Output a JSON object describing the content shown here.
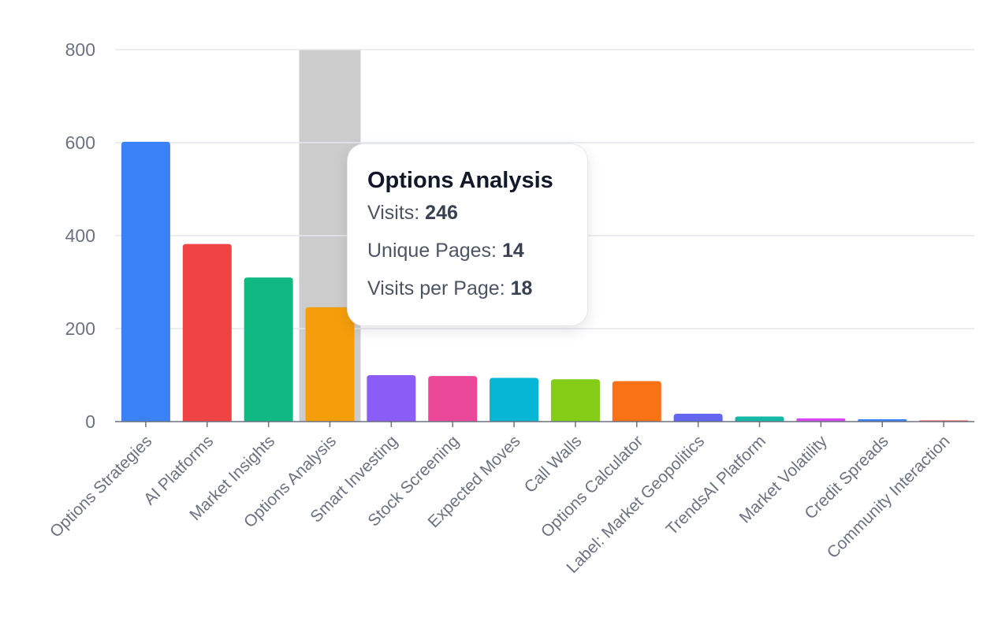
{
  "chart_data": {
    "type": "bar",
    "title": "",
    "xlabel": "",
    "ylabel": "",
    "ylim": [
      0,
      800
    ],
    "yticks": [
      0,
      200,
      400,
      600,
      800
    ],
    "grid": true,
    "categories": [
      "Options Strategies",
      "AI Platforms",
      "Market Insights",
      "Options Analysis",
      "Smart Investing",
      "Stock Screening",
      "Expected Moves",
      "Call Walls",
      "Options Calculator",
      "Label: Market Geopolitics",
      "TrendsAI Platform",
      "Market Volatility",
      "Credit Spreads",
      "Community Interaction"
    ],
    "values": [
      602,
      382,
      310,
      246,
      100,
      98,
      94,
      91,
      87,
      17,
      11,
      7,
      5,
      2
    ],
    "colors": [
      "#3b82f6",
      "#ef4444",
      "#10b981",
      "#f59e0b",
      "#8b5cf6",
      "#ec4899",
      "#06b6d4",
      "#84cc16",
      "#f97316",
      "#6366f1",
      "#14b8a6",
      "#d946ef",
      "#3b82f6",
      "#ef4444"
    ],
    "hover_highlight_color": "#cccccc",
    "active_index": 3
  },
  "tooltip": {
    "title": "Options Analysis",
    "rows": [
      {
        "label": "Visits: ",
        "value": "246"
      },
      {
        "label": "Unique Pages: ",
        "value": "14"
      },
      {
        "label": "Visits per Page: ",
        "value": "18"
      }
    ]
  }
}
